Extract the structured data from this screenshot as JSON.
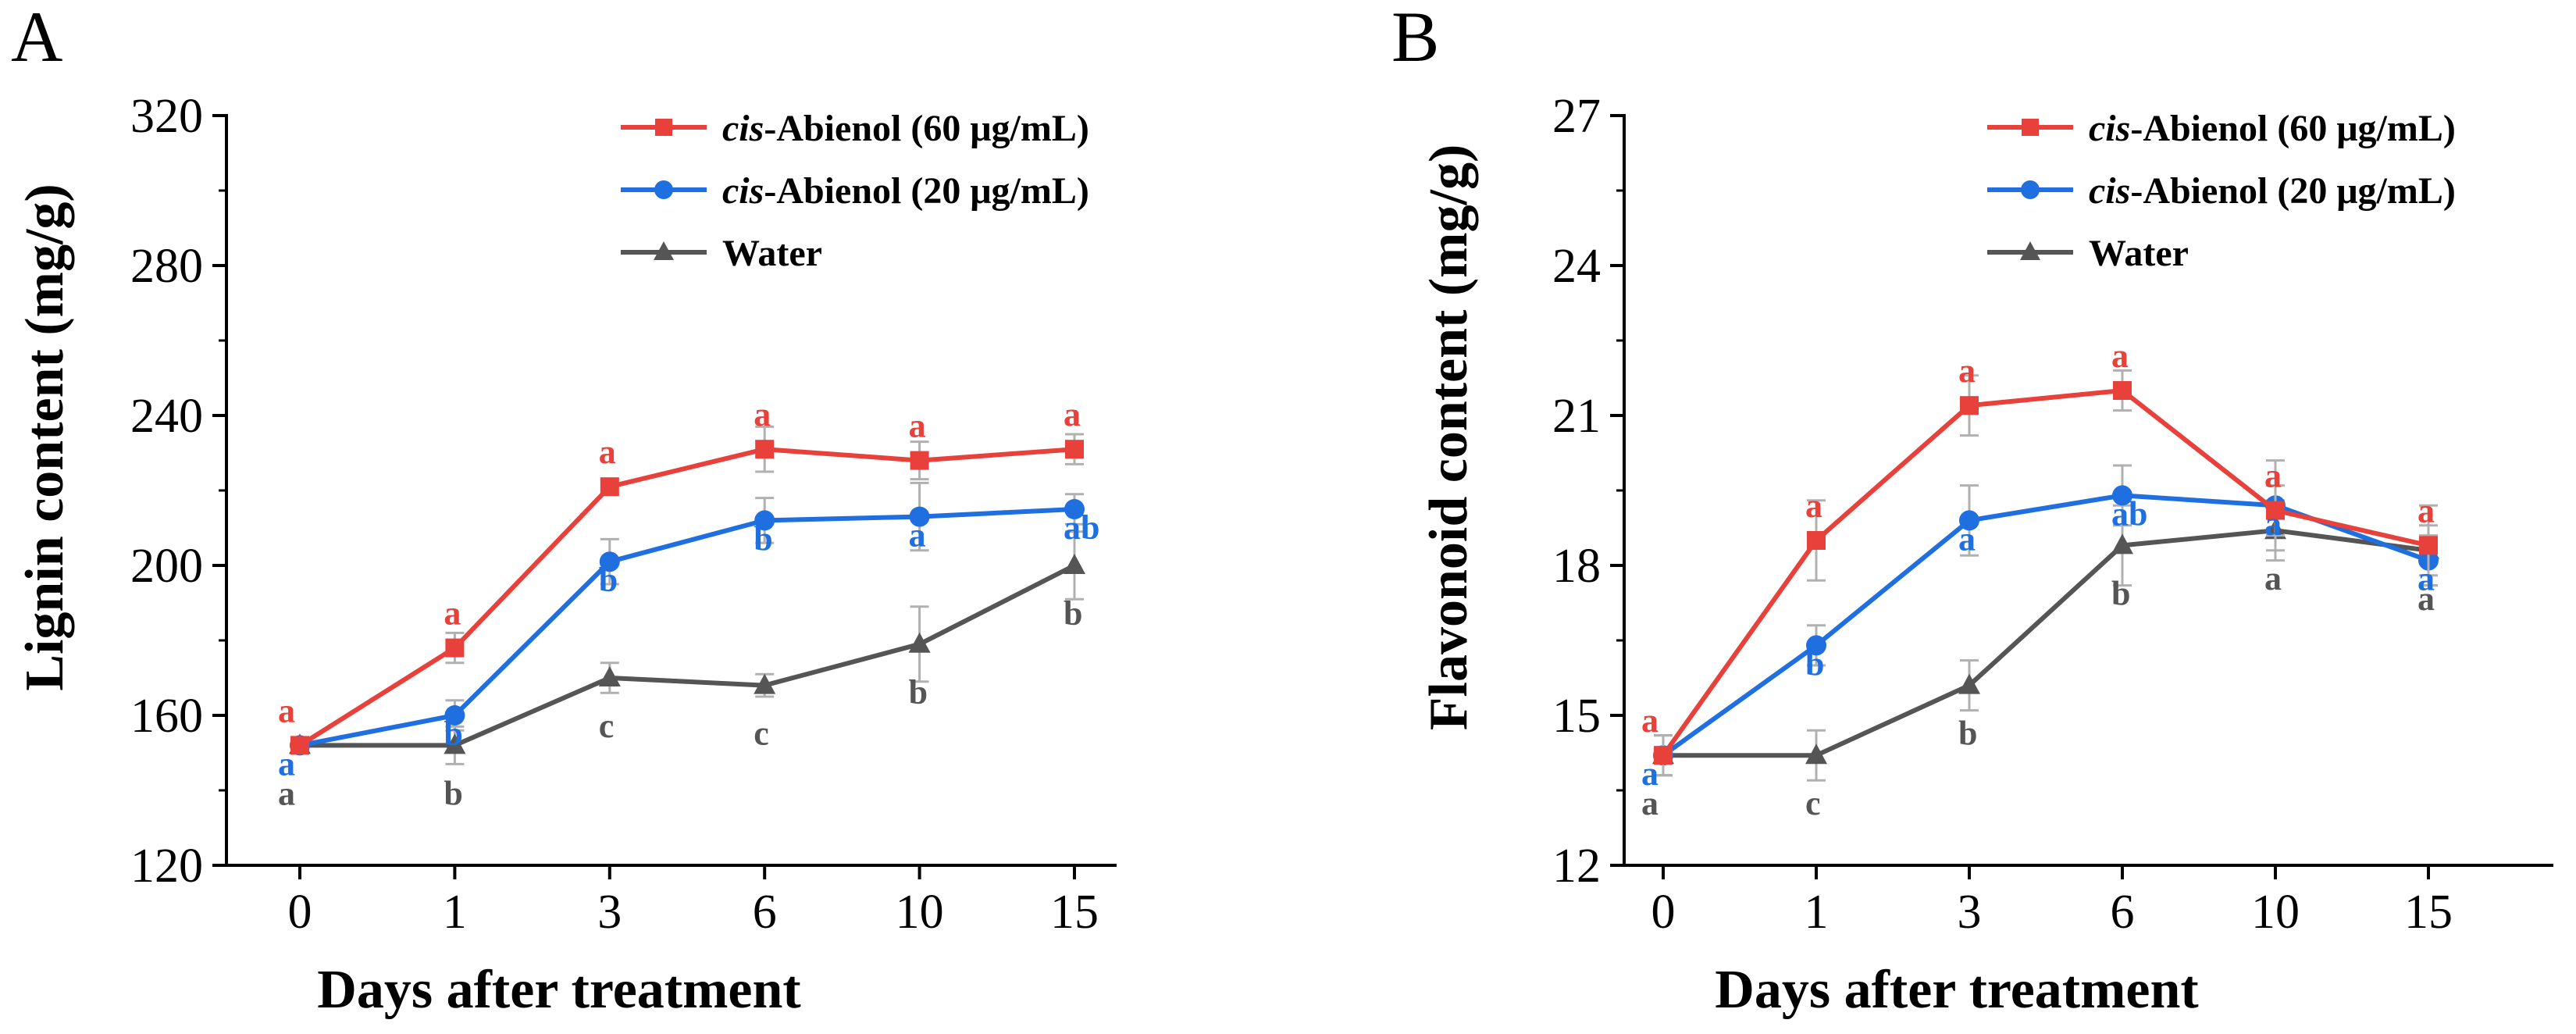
{
  "colors": {
    "cis60": "#e8403a",
    "cis20": "#1f6fe0",
    "water": "#555555",
    "errorbar": "#b0b0b0"
  },
  "chart_data": [
    {
      "panel": "A",
      "type": "line",
      "categories": [
        "0",
        "1",
        "3",
        "6",
        "10",
        "15"
      ],
      "xlabel": "Days after treatment",
      "ylabel": "Lignin content (mg/g)",
      "ylim": [
        120,
        320
      ],
      "yticks": [
        "120",
        "160",
        "200",
        "240",
        "280",
        "320"
      ],
      "legend_position": "top-right",
      "series": [
        {
          "name_italic": "cis",
          "name_rest": "-Abienol (60 μg/mL)",
          "key": "cis60",
          "marker": "square",
          "values": [
            152,
            178,
            221,
            231,
            228,
            231
          ],
          "errors": [
            2,
            4,
            2,
            6,
            5,
            4
          ],
          "letters": [
            "a",
            "a",
            "a",
            "a",
            "a",
            "a"
          ]
        },
        {
          "name_italic": "cis",
          "name_rest": "-Abienol (20 μg/mL)",
          "key": "cis20",
          "marker": "circle",
          "values": [
            152,
            160,
            201,
            212,
            213,
            215
          ],
          "errors": [
            2,
            4,
            6,
            6,
            9,
            4
          ],
          "letters": [
            "a",
            "b",
            "b",
            "b",
            "a",
            "ab"
          ]
        },
        {
          "name_italic": "",
          "name_rest": "Water",
          "key": "water",
          "marker": "triangle",
          "values": [
            152,
            152,
            170,
            168,
            179,
            200
          ],
          "errors": [
            2,
            5,
            4,
            3,
            10,
            9
          ],
          "letters": [
            "a",
            "b",
            "c",
            "c",
            "b",
            "b"
          ]
        }
      ]
    },
    {
      "panel": "B",
      "type": "line",
      "categories": [
        "0",
        "1",
        "3",
        "6",
        "10",
        "15"
      ],
      "xlabel": "Days after treatment",
      "ylabel": "Flavonoid content (mg/g)",
      "ylim": [
        12,
        27
      ],
      "yticks": [
        "12",
        "15",
        "18",
        "21",
        "24",
        "27"
      ],
      "legend_position": "top-right",
      "series": [
        {
          "name_italic": "cis",
          "name_rest": "-Abienol (60 μg/mL)",
          "key": "cis60",
          "marker": "square",
          "values": [
            14.2,
            18.5,
            21.2,
            21.5,
            19.1,
            18.4
          ],
          "errors": [
            0.4,
            0.8,
            0.6,
            0.4,
            0.5,
            0.8
          ],
          "letters": [
            "a",
            "a",
            "a",
            "a",
            "a",
            "a"
          ]
        },
        {
          "name_italic": "cis",
          "name_rest": "-Abienol (20 μg/mL)",
          "key": "cis20",
          "marker": "circle",
          "values": [
            14.2,
            16.4,
            18.9,
            19.4,
            19.2,
            18.1
          ],
          "errors": [
            0.4,
            0.4,
            0.7,
            0.6,
            0.9,
            0.5
          ],
          "letters": [
            "a",
            "b",
            "a",
            "ab",
            "a",
            "a"
          ]
        },
        {
          "name_italic": "",
          "name_rest": "Water",
          "key": "water",
          "marker": "triangle",
          "values": [
            14.2,
            14.2,
            15.6,
            18.4,
            18.7,
            18.3
          ],
          "errors": [
            0.4,
            0.5,
            0.5,
            0.8,
            0.6,
            0.5
          ],
          "letters": [
            "a",
            "c",
            "b",
            "b",
            "a",
            "a"
          ]
        }
      ]
    }
  ]
}
